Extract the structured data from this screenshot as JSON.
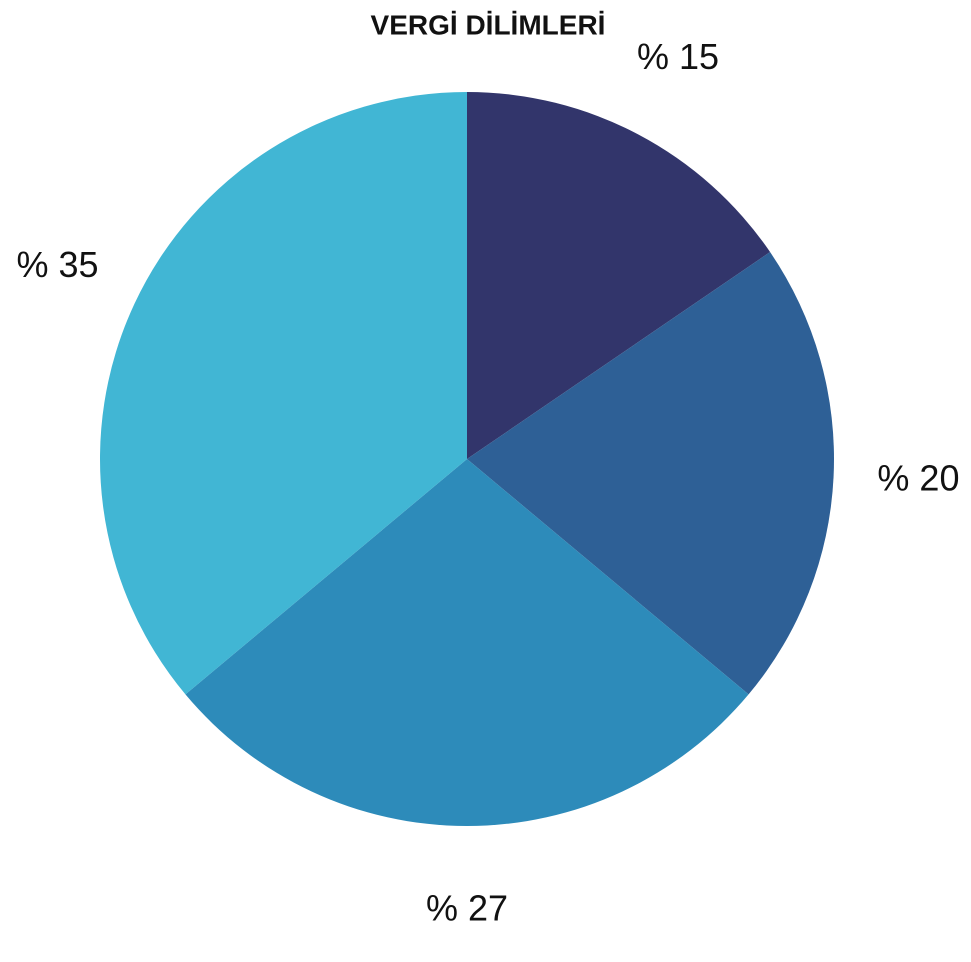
{
  "chart_data": {
    "type": "pie",
    "title": "VERGİ DİLİMLERİ",
    "values": [
      15,
      20,
      27,
      35
    ],
    "value_labels": [
      "% 15",
      "% 20",
      "% 27",
      "% 35"
    ],
    "colors": [
      "#32356b",
      "#2e6096",
      "#2d8bba",
      "#41b6d4"
    ]
  }
}
